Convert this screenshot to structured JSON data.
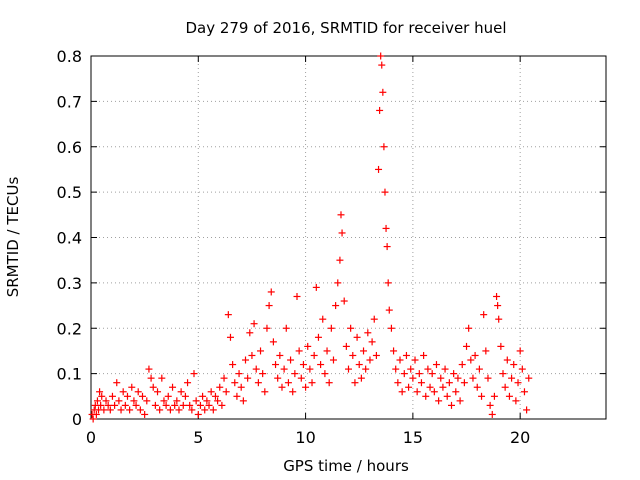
{
  "chart_data": {
    "type": "scatter",
    "title": "Day 279 of 2016, SRMTID for receiver huel",
    "xlabel": "GPS time / hours",
    "ylabel": "SRMTID / TECUs",
    "xlim": [
      0,
      24
    ],
    "ylim": [
      0,
      0.8
    ],
    "x_ticks": [
      0,
      5,
      10,
      15,
      20
    ],
    "y_ticks": [
      0,
      0.1,
      0.2,
      0.3,
      0.4,
      0.5,
      0.6,
      0.7,
      0.8
    ],
    "x_tick_labels": [
      "0",
      "5",
      "10",
      "15",
      "20"
    ],
    "y_tick_labels": [
      "0",
      "0.1",
      "0.2",
      "0.3",
      "0.4",
      "0.5",
      "0.6",
      "0.7",
      "0.8"
    ],
    "grid": true,
    "marker": "+",
    "series_color": "#ff0000",
    "series": [
      {
        "points": [
          [
            0.05,
            0.01
          ],
          [
            0.1,
            0.0
          ],
          [
            0.15,
            0.02
          ],
          [
            0.2,
            0.03
          ],
          [
            0.25,
            0.01
          ],
          [
            0.3,
            0.04
          ],
          [
            0.35,
            0.02
          ],
          [
            0.4,
            0.06
          ],
          [
            0.45,
            0.03
          ],
          [
            0.5,
            0.05
          ],
          [
            0.6,
            0.02
          ],
          [
            0.7,
            0.04
          ],
          [
            0.8,
            0.03
          ],
          [
            0.9,
            0.02
          ],
          [
            1.0,
            0.05
          ],
          [
            1.1,
            0.03
          ],
          [
            1.2,
            0.08
          ],
          [
            1.3,
            0.04
          ],
          [
            1.4,
            0.02
          ],
          [
            1.5,
            0.06
          ],
          [
            1.6,
            0.03
          ],
          [
            1.7,
            0.05
          ],
          [
            1.8,
            0.02
          ],
          [
            1.9,
            0.07
          ],
          [
            2.0,
            0.04
          ],
          [
            2.1,
            0.03
          ],
          [
            2.2,
            0.06
          ],
          [
            2.3,
            0.02
          ],
          [
            2.4,
            0.05
          ],
          [
            2.5,
            0.01
          ],
          [
            2.6,
            0.04
          ],
          [
            2.7,
            0.11
          ],
          [
            2.8,
            0.09
          ],
          [
            2.9,
            0.07
          ],
          [
            3.0,
            0.03
          ],
          [
            3.1,
            0.06
          ],
          [
            3.2,
            0.02
          ],
          [
            3.3,
            0.09
          ],
          [
            3.4,
            0.04
          ],
          [
            3.5,
            0.03
          ],
          [
            3.6,
            0.05
          ],
          [
            3.7,
            0.02
          ],
          [
            3.8,
            0.07
          ],
          [
            3.9,
            0.03
          ],
          [
            4.0,
            0.04
          ],
          [
            4.1,
            0.02
          ],
          [
            4.2,
            0.06
          ],
          [
            4.3,
            0.03
          ],
          [
            4.4,
            0.05
          ],
          [
            4.5,
            0.08
          ],
          [
            4.6,
            0.03
          ],
          [
            4.7,
            0.02
          ],
          [
            4.8,
            0.1
          ],
          [
            4.9,
            0.04
          ],
          [
            5.0,
            0.01
          ],
          [
            5.1,
            0.03
          ],
          [
            5.2,
            0.05
          ],
          [
            5.3,
            0.02
          ],
          [
            5.4,
            0.04
          ],
          [
            5.5,
            0.03
          ],
          [
            5.6,
            0.06
          ],
          [
            5.7,
            0.02
          ],
          [
            5.8,
            0.05
          ],
          [
            5.9,
            0.04
          ],
          [
            6.0,
            0.07
          ],
          [
            6.1,
            0.03
          ],
          [
            6.2,
            0.09
          ],
          [
            6.3,
            0.06
          ],
          [
            6.4,
            0.23
          ],
          [
            6.5,
            0.18
          ],
          [
            6.6,
            0.12
          ],
          [
            6.7,
            0.08
          ],
          [
            6.8,
            0.05
          ],
          [
            6.9,
            0.1
          ],
          [
            7.0,
            0.07
          ],
          [
            7.1,
            0.04
          ],
          [
            7.2,
            0.13
          ],
          [
            7.3,
            0.09
          ],
          [
            7.4,
            0.19
          ],
          [
            7.5,
            0.14
          ],
          [
            7.6,
            0.21
          ],
          [
            7.7,
            0.11
          ],
          [
            7.8,
            0.08
          ],
          [
            7.9,
            0.15
          ],
          [
            8.0,
            0.1
          ],
          [
            8.1,
            0.06
          ],
          [
            8.2,
            0.2
          ],
          [
            8.3,
            0.25
          ],
          [
            8.4,
            0.28
          ],
          [
            8.5,
            0.17
          ],
          [
            8.6,
            0.12
          ],
          [
            8.7,
            0.09
          ],
          [
            8.8,
            0.14
          ],
          [
            8.9,
            0.07
          ],
          [
            9.0,
            0.11
          ],
          [
            9.1,
            0.2
          ],
          [
            9.2,
            0.08
          ],
          [
            9.3,
            0.13
          ],
          [
            9.4,
            0.06
          ],
          [
            9.5,
            0.1
          ],
          [
            9.6,
            0.27
          ],
          [
            9.7,
            0.15
          ],
          [
            9.8,
            0.09
          ],
          [
            9.9,
            0.12
          ],
          [
            10.0,
            0.07
          ],
          [
            10.1,
            0.16
          ],
          [
            10.2,
            0.11
          ],
          [
            10.3,
            0.08
          ],
          [
            10.4,
            0.14
          ],
          [
            10.5,
            0.29
          ],
          [
            10.6,
            0.18
          ],
          [
            10.7,
            0.12
          ],
          [
            10.8,
            0.22
          ],
          [
            10.9,
            0.1
          ],
          [
            11.0,
            0.15
          ],
          [
            11.1,
            0.08
          ],
          [
            11.2,
            0.2
          ],
          [
            11.3,
            0.13
          ],
          [
            11.4,
            0.25
          ],
          [
            11.5,
            0.3
          ],
          [
            11.6,
            0.35
          ],
          [
            11.65,
            0.45
          ],
          [
            11.7,
            0.41
          ],
          [
            11.8,
            0.26
          ],
          [
            11.9,
            0.16
          ],
          [
            12.0,
            0.11
          ],
          [
            12.1,
            0.2
          ],
          [
            12.2,
            0.14
          ],
          [
            12.3,
            0.08
          ],
          [
            12.4,
            0.18
          ],
          [
            12.5,
            0.12
          ],
          [
            12.6,
            0.09
          ],
          [
            12.7,
            0.15
          ],
          [
            12.8,
            0.11
          ],
          [
            12.9,
            0.19
          ],
          [
            13.0,
            0.13
          ],
          [
            13.1,
            0.17
          ],
          [
            13.2,
            0.22
          ],
          [
            13.3,
            0.14
          ],
          [
            13.4,
            0.55
          ],
          [
            13.45,
            0.68
          ],
          [
            13.5,
            0.8
          ],
          [
            13.55,
            0.78
          ],
          [
            13.6,
            0.72
          ],
          [
            13.65,
            0.6
          ],
          [
            13.7,
            0.5
          ],
          [
            13.75,
            0.42
          ],
          [
            13.8,
            0.38
          ],
          [
            13.85,
            0.3
          ],
          [
            13.9,
            0.24
          ],
          [
            14.0,
            0.2
          ],
          [
            14.1,
            0.15
          ],
          [
            14.2,
            0.11
          ],
          [
            14.3,
            0.08
          ],
          [
            14.4,
            0.13
          ],
          [
            14.5,
            0.06
          ],
          [
            14.6,
            0.1
          ],
          [
            14.7,
            0.14
          ],
          [
            14.8,
            0.07
          ],
          [
            14.9,
            0.11
          ],
          [
            15.0,
            0.09
          ],
          [
            15.1,
            0.13
          ],
          [
            15.2,
            0.06
          ],
          [
            15.3,
            0.1
          ],
          [
            15.4,
            0.08
          ],
          [
            15.5,
            0.14
          ],
          [
            15.6,
            0.05
          ],
          [
            15.7,
            0.11
          ],
          [
            15.8,
            0.07
          ],
          [
            15.9,
            0.1
          ],
          [
            16.0,
            0.06
          ],
          [
            16.1,
            0.12
          ],
          [
            16.2,
            0.04
          ],
          [
            16.3,
            0.09
          ],
          [
            16.4,
            0.07
          ],
          [
            16.5,
            0.11
          ],
          [
            16.6,
            0.05
          ],
          [
            16.7,
            0.08
          ],
          [
            16.8,
            0.03
          ],
          [
            16.9,
            0.1
          ],
          [
            17.0,
            0.06
          ],
          [
            17.1,
            0.09
          ],
          [
            17.2,
            0.04
          ],
          [
            17.3,
            0.12
          ],
          [
            17.4,
            0.08
          ],
          [
            17.5,
            0.16
          ],
          [
            17.6,
            0.2
          ],
          [
            17.7,
            0.13
          ],
          [
            17.8,
            0.09
          ],
          [
            17.9,
            0.14
          ],
          [
            18.0,
            0.07
          ],
          [
            18.1,
            0.11
          ],
          [
            18.2,
            0.05
          ],
          [
            18.3,
            0.23
          ],
          [
            18.4,
            0.15
          ],
          [
            18.5,
            0.09
          ],
          [
            18.6,
            0.03
          ],
          [
            18.7,
            0.01
          ],
          [
            18.8,
            0.05
          ],
          [
            18.9,
            0.27
          ],
          [
            18.95,
            0.25
          ],
          [
            19.0,
            0.22
          ],
          [
            19.1,
            0.16
          ],
          [
            19.2,
            0.1
          ],
          [
            19.3,
            0.07
          ],
          [
            19.4,
            0.13
          ],
          [
            19.5,
            0.05
          ],
          [
            19.6,
            0.09
          ],
          [
            19.7,
            0.12
          ],
          [
            19.8,
            0.04
          ],
          [
            19.9,
            0.08
          ],
          [
            20.0,
            0.15
          ],
          [
            20.1,
            0.11
          ],
          [
            20.2,
            0.06
          ],
          [
            20.3,
            0.02
          ],
          [
            20.4,
            0.09
          ]
        ]
      }
    ]
  }
}
